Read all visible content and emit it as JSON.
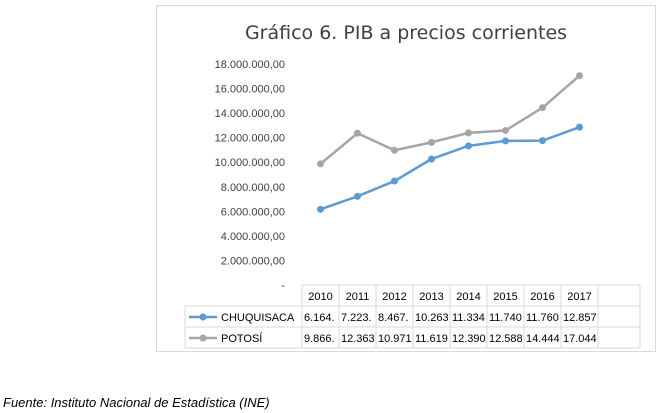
{
  "chart_data": {
    "type": "line",
    "title": "Gráfico 6. PIB a precios corrientes",
    "categories": [
      "2010",
      "2011",
      "2012",
      "2013",
      "2014",
      "2015",
      "2016",
      "2017"
    ],
    "ylim": [
      0,
      18000000
    ],
    "yticks": [
      "18.000.000,00",
      "16.000.000,00",
      "14.000.000,00",
      "12.000.000,00",
      "10.000.000,00",
      "8.000.000,00",
      "6.000.000,00",
      "4.000.000,00",
      "2.000.000,00",
      "-"
    ],
    "grid": false,
    "legend": "data-table",
    "series": [
      {
        "name": "CHUQUISACA",
        "color": "#5b9bd5",
        "values": [
          6164000,
          7223000,
          8467000,
          10263000,
          11334000,
          11740000,
          11760000,
          12857000
        ],
        "table_labels": [
          "6.164.",
          "7.223.",
          "8.467.",
          "10.263",
          "11.334",
          "11.740",
          "11.760",
          "12.857"
        ]
      },
      {
        "name": "POTOSÍ",
        "color": "#a5a5a5",
        "values": [
          9866000,
          12363000,
          10971000,
          11619000,
          12390000,
          12588000,
          14444000,
          17044000
        ],
        "table_labels": [
          "9.866.",
          "12.363",
          "10.971",
          "11.619",
          "12.390",
          "12.588",
          "14.444",
          "17.044"
        ]
      }
    ]
  },
  "source": "Fuente: Instituto Nacional de Estadística (INE)"
}
